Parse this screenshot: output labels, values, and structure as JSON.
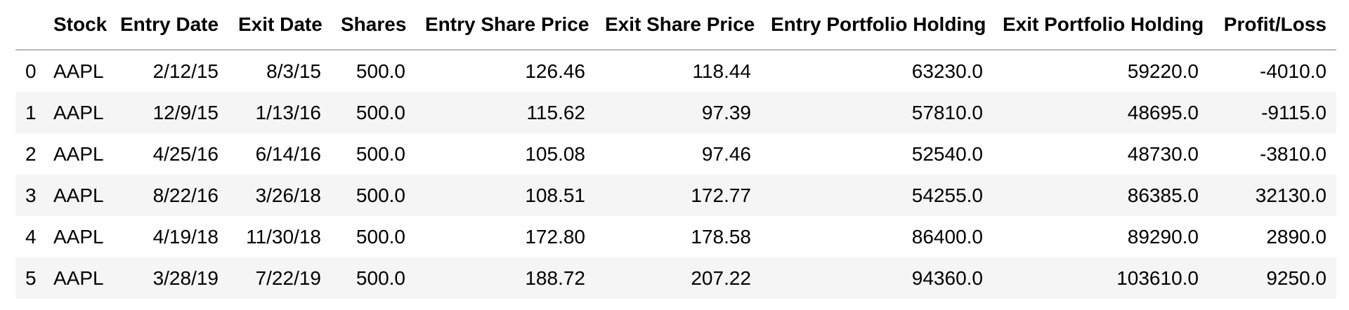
{
  "table": {
    "columns": [
      "",
      "Stock",
      "Entry Date",
      "Exit Date",
      "Shares",
      "Entry Share Price",
      "Exit Share Price",
      "Entry Portfolio Holding",
      "Exit Portfolio Holding",
      "Profit/Loss"
    ],
    "rows": [
      [
        "0",
        "AAPL",
        "2/12/15",
        "8/3/15",
        "500.0",
        "126.46",
        "118.44",
        "63230.0",
        "59220.0",
        "-4010.0"
      ],
      [
        "1",
        "AAPL",
        "12/9/15",
        "1/13/16",
        "500.0",
        "115.62",
        "97.39",
        "57810.0",
        "48695.0",
        "-9115.0"
      ],
      [
        "2",
        "AAPL",
        "4/25/16",
        "6/14/16",
        "500.0",
        "105.08",
        "97.46",
        "52540.0",
        "48730.0",
        "-3810.0"
      ],
      [
        "3",
        "AAPL",
        "8/22/16",
        "3/26/18",
        "500.0",
        "108.51",
        "172.77",
        "54255.0",
        "86385.0",
        "32130.0"
      ],
      [
        "4",
        "AAPL",
        "4/19/18",
        "11/30/18",
        "500.0",
        "172.80",
        "178.58",
        "86400.0",
        "89290.0",
        "2890.0"
      ],
      [
        "5",
        "AAPL",
        "3/28/19",
        "7/22/19",
        "500.0",
        "188.72",
        "207.22",
        "94360.0",
        "103610.0",
        "9250.0"
      ]
    ]
  }
}
